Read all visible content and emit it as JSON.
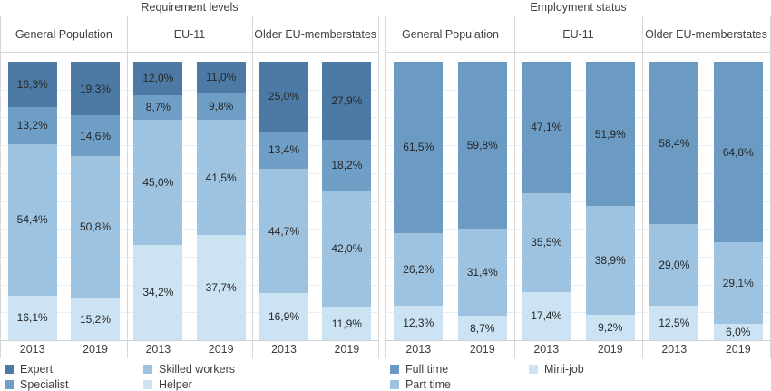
{
  "page": {
    "background": "#ffffff",
    "text_color": "#3f3f3f",
    "value_text_color": "#262626",
    "grid_color": "#e9eef3",
    "frame_color": "#d8d8d8",
    "axis_color": "#c8d3da"
  },
  "chart_data": [
    {
      "type": "bar",
      "stacked": true,
      "title": "Requirement levels",
      "group_labels": [
        "General Population",
        "EU-11",
        "Older EU-memberstates"
      ],
      "x_labels": [
        "2013",
        "2019"
      ],
      "categories": [
        "General Population 2013",
        "General Population 2019",
        "EU-11 2013",
        "EU-11 2019",
        "Older EU-memberstates 2013",
        "Older EU-memberstates 2019"
      ],
      "series": [
        {
          "name": "Expert",
          "color": "#4c7aa4",
          "values": [
            16.3,
            19.3,
            12.0,
            11.0,
            25.0,
            27.9
          ]
        },
        {
          "name": "Specialist",
          "color": "#6f9ec7",
          "values": [
            13.2,
            14.6,
            8.7,
            9.8,
            13.4,
            18.2
          ]
        },
        {
          "name": "Skilled workers",
          "color": "#9dc3e0",
          "values": [
            54.4,
            50.8,
            45.0,
            41.5,
            44.7,
            42.0
          ]
        },
        {
          "name": "Helper",
          "color": "#cbe3f2",
          "values": [
            16.1,
            15.2,
            34.2,
            37.7,
            16.9,
            11.9
          ]
        }
      ],
      "unit": "%",
      "ylim": [
        0,
        100
      ],
      "grid": true,
      "legend_position": "bottom",
      "legend_columns": [
        [
          "Expert",
          "Specialist"
        ],
        [
          "Skilled workers",
          "Helper"
        ]
      ]
    },
    {
      "type": "bar",
      "stacked": true,
      "title": "Employment status",
      "group_labels": [
        "General Population",
        "EU-11",
        "Older EU-memberstates"
      ],
      "x_labels": [
        "2013",
        "2019"
      ],
      "categories": [
        "General Population 2013",
        "General Population 2019",
        "EU-11 2013",
        "EU-11 2019",
        "Older EU-memberstates 2013",
        "Older EU-memberstates 2019"
      ],
      "series": [
        {
          "name": "Full time",
          "color": "#6b9ac3",
          "values": [
            61.5,
            59.8,
            47.1,
            51.9,
            58.4,
            64.8
          ]
        },
        {
          "name": "Part time",
          "color": "#9dc3e0",
          "values": [
            26.2,
            31.4,
            35.5,
            38.9,
            29.0,
            29.1
          ]
        },
        {
          "name": "Mini-job",
          "color": "#cbe3f2",
          "values": [
            12.3,
            8.7,
            17.4,
            9.2,
            12.5,
            6.0
          ]
        }
      ],
      "unit": "%",
      "ylim": [
        0,
        100
      ],
      "grid": true,
      "legend_position": "bottom",
      "legend_columns": [
        [
          "Full time",
          "Part time"
        ],
        [
          "Mini-job"
        ]
      ]
    }
  ]
}
